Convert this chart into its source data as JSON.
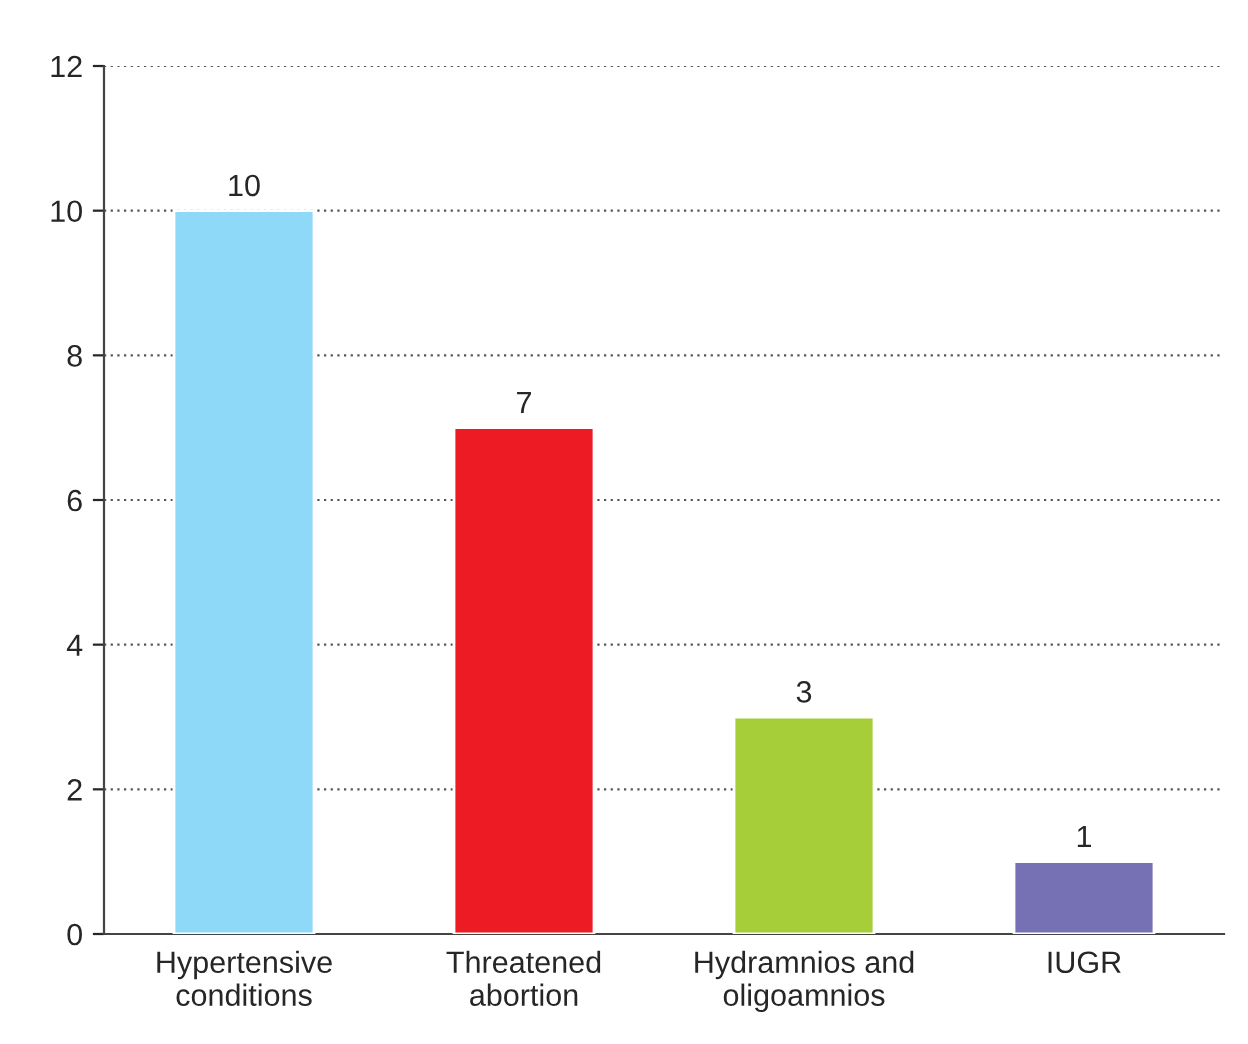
{
  "chart_data": {
    "type": "bar",
    "categories": [
      "Hypertensive\nconditions",
      "Threatened\nabortion",
      "Hydramnios and\noligoamnios",
      "IUGR"
    ],
    "values": [
      10,
      7,
      3,
      1
    ],
    "colors": [
      "#8ed8f8",
      "#ed1c24",
      "#a6ce39",
      "#7670b5"
    ],
    "ylim": [
      0,
      12
    ],
    "yticks": [
      0,
      2,
      4,
      6,
      8,
      10,
      12
    ],
    "grid": "y",
    "data_labels": true
  }
}
